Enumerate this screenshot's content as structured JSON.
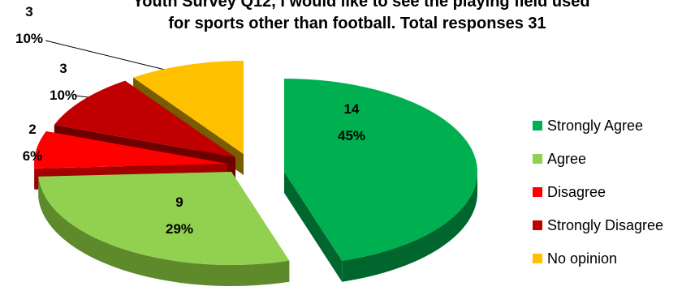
{
  "chart_data": {
    "type": "pie",
    "title_line1": "Youth Survey Q12, I would like to see the playing field used",
    "title_line2": "for sports other than football. Total responses 31",
    "legend_position": "right",
    "slices": [
      {
        "name": "Strongly Agree",
        "value": 14,
        "percent": "45%",
        "color": "#00B050",
        "side": "#00662E"
      },
      {
        "name": "Agree",
        "value": 9,
        "percent": "29%",
        "color": "#92D050",
        "side": "#5E8A2C"
      },
      {
        "name": "Disagree",
        "value": 2,
        "percent": "6%",
        "color": "#FF0000",
        "side": "#A50000"
      },
      {
        "name": "Strongly Disagree",
        "value": 3,
        "percent": "10%",
        "color": "#C00000",
        "side": "#6E0000"
      },
      {
        "name": "No opinion",
        "value": 3,
        "percent": "10%",
        "color": "#FFC000",
        "side": "#7A5C00"
      }
    ]
  }
}
